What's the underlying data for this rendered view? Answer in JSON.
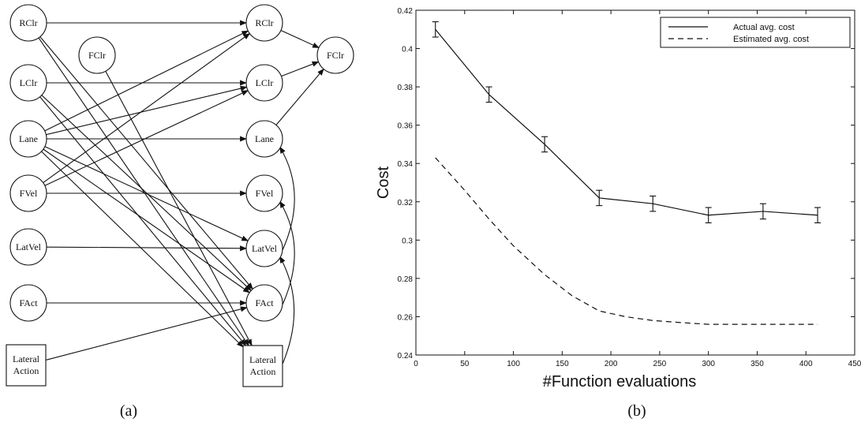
{
  "diagram": {
    "caption": "(a)",
    "left_nodes": [
      {
        "id": "l-rclr",
        "label": "RClr",
        "shape": "circle"
      },
      {
        "id": "l-fclr",
        "label": "FClr",
        "shape": "circle"
      },
      {
        "id": "l-lclr",
        "label": "LClr",
        "shape": "circle"
      },
      {
        "id": "l-lane",
        "label": "Lane",
        "shape": "circle"
      },
      {
        "id": "l-fvel",
        "label": "FVel",
        "shape": "circle"
      },
      {
        "id": "l-latvel",
        "label": "LatVel",
        "shape": "circle"
      },
      {
        "id": "l-fact",
        "label": "FAct",
        "shape": "circle"
      },
      {
        "id": "l-lataction",
        "label": "Lateral Action",
        "lines": [
          "Lateral",
          "Action"
        ],
        "shape": "box"
      }
    ],
    "right_nodes": [
      {
        "id": "r-rclr",
        "label": "RClr",
        "shape": "circle"
      },
      {
        "id": "r-lclr",
        "label": "LClr",
        "shape": "circle"
      },
      {
        "id": "r-lane",
        "label": "Lane",
        "shape": "circle"
      },
      {
        "id": "r-fvel",
        "label": "FVel",
        "shape": "circle"
      },
      {
        "id": "r-latvel",
        "label": "LatVel",
        "shape": "circle"
      },
      {
        "id": "r-fact",
        "label": "FAct",
        "shape": "circle"
      },
      {
        "id": "r-lataction",
        "label": "Lateral Action",
        "lines": [
          "Lateral",
          "Action"
        ],
        "shape": "box"
      },
      {
        "id": "r-fclr",
        "label": "FClr",
        "shape": "circle"
      }
    ],
    "edges": [
      [
        "l-rclr",
        "r-rclr"
      ],
      [
        "l-rclr",
        "r-fact"
      ],
      [
        "l-rclr",
        "r-lataction"
      ],
      [
        "l-fclr",
        "r-lataction"
      ],
      [
        "l-lclr",
        "r-lclr"
      ],
      [
        "l-lclr",
        "r-fact"
      ],
      [
        "l-lclr",
        "r-lataction"
      ],
      [
        "l-lane",
        "r-rclr"
      ],
      [
        "l-lane",
        "r-lclr"
      ],
      [
        "l-lane",
        "r-lane"
      ],
      [
        "l-lane",
        "r-latvel"
      ],
      [
        "l-lane",
        "r-fact"
      ],
      [
        "l-lane",
        "r-lataction"
      ],
      [
        "l-fvel",
        "r-rclr"
      ],
      [
        "l-fvel",
        "r-lclr"
      ],
      [
        "l-fvel",
        "r-fvel"
      ],
      [
        "l-latvel",
        "r-latvel"
      ],
      [
        "l-fact",
        "r-fact"
      ],
      [
        "l-lataction",
        "r-fact"
      ],
      [
        "r-rclr",
        "r-fclr"
      ],
      [
        "r-lclr",
        "r-fclr"
      ],
      [
        "r-lane",
        "r-fclr"
      ],
      [
        "r-latvel",
        "r-lane"
      ],
      [
        "r-fact",
        "r-fvel"
      ],
      [
        "r-lataction",
        "r-latvel"
      ]
    ]
  },
  "chart_caption": "(b)",
  "chart_data": {
    "type": "line",
    "xlabel": "#Function evaluations",
    "ylabel": "Cost",
    "xlim": [
      0,
      450
    ],
    "ylim": [
      0.24,
      0.42
    ],
    "xticks": [
      0,
      50,
      100,
      150,
      200,
      250,
      300,
      350,
      400,
      450
    ],
    "yticks": [
      0.24,
      0.26,
      0.28,
      0.3,
      0.32,
      0.34,
      0.36,
      0.38,
      0.4,
      0.42
    ],
    "ytick_labels": [
      "0.24",
      "0.26",
      "0.28",
      "0.3",
      "0.32",
      "0.34",
      "0.36",
      "0.38",
      "0.4",
      "0.42"
    ],
    "grid": false,
    "legend_position": "top-right",
    "series": [
      {
        "name": "Actual avg. cost",
        "style": "solid",
        "x": [
          20,
          75,
          132,
          188,
          243,
          300,
          356,
          412
        ],
        "y": [
          0.41,
          0.376,
          0.35,
          0.322,
          0.319,
          0.313,
          0.315,
          0.313
        ],
        "error": [
          0.004,
          0.004,
          0.004,
          0.004,
          0.004,
          0.004,
          0.004,
          0.004
        ]
      },
      {
        "name": "Estimated avg. cost",
        "style": "dashed",
        "x": [
          20,
          50,
          75,
          100,
          132,
          160,
          188,
          215,
          243,
          270,
          300,
          330,
          356,
          385,
          412
        ],
        "y": [
          0.343,
          0.326,
          0.311,
          0.297,
          0.282,
          0.271,
          0.263,
          0.26,
          0.258,
          0.257,
          0.256,
          0.256,
          0.256,
          0.256,
          0.256
        ]
      }
    ]
  }
}
